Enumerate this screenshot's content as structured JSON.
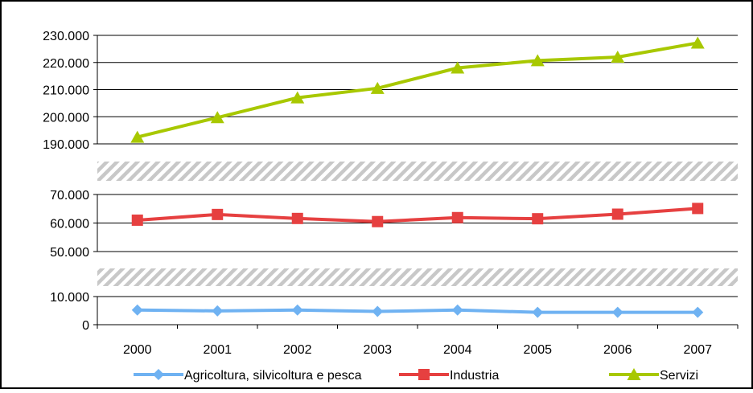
{
  "chart_data": {
    "type": "line",
    "title": "",
    "xlabel": "",
    "ylabel": "",
    "x": [
      "2000",
      "2001",
      "2002",
      "2003",
      "2004",
      "2005",
      "2006",
      "2007"
    ],
    "axis_breaks": true,
    "grid": true,
    "legend_position": "bottom",
    "panels": [
      {
        "name": "top",
        "ylim": [
          190000,
          230000
        ],
        "ticks": [
          190000,
          200000,
          210000,
          220000,
          230000
        ],
        "tick_labels": [
          "190.000",
          "200.000",
          "210.000",
          "220.000",
          "230.000"
        ]
      },
      {
        "name": "middle",
        "ylim": [
          50000,
          70000
        ],
        "ticks": [
          50000,
          60000,
          70000
        ],
        "tick_labels": [
          "50.000",
          "60.000",
          "70.000"
        ]
      },
      {
        "name": "bottom",
        "ylim": [
          0,
          10000
        ],
        "ticks": [
          0,
          10000
        ],
        "tick_labels": [
          "0",
          "10.000"
        ]
      }
    ],
    "series": [
      {
        "name": "Agricoltura, silvicoltura e pesca",
        "color": "#6fb2f2",
        "marker": "diamond",
        "panel": 2,
        "values": [
          5200,
          4900,
          5200,
          4700,
          5200,
          4400,
          4400,
          4400
        ]
      },
      {
        "name": "Industria",
        "color": "#e64040",
        "marker": "square",
        "panel": 1,
        "values": [
          61000,
          63000,
          61600,
          60500,
          61900,
          61500,
          63100,
          65100
        ]
      },
      {
        "name": "Servizi",
        "color": "#a8c800",
        "marker": "triangle",
        "panel": 0,
        "values": [
          192500,
          199700,
          207000,
          210500,
          218000,
          220700,
          222000,
          227200
        ]
      }
    ]
  }
}
